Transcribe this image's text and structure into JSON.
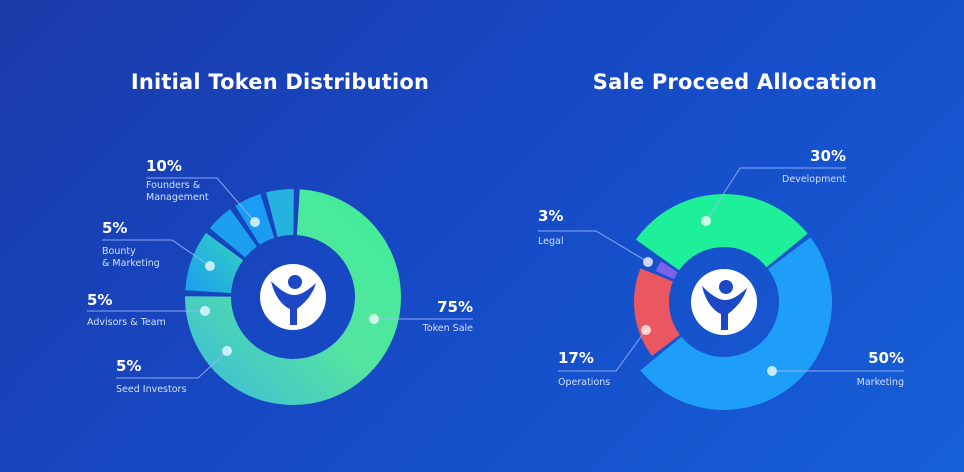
{
  "chart_data": [
    {
      "type": "pie",
      "title": "Initial Token Distribution",
      "categories": [
        "Token Sale",
        "Founders & Management",
        "Bounty & Marketing",
        "Advisors & Team",
        "Seed Investors"
      ],
      "values": [
        75,
        10,
        5,
        5,
        5
      ],
      "value_labels": [
        "75%",
        "10%",
        "5%",
        "5%",
        "5%"
      ],
      "colors": [
        "#45e6a0",
        "#22b7de",
        "#1aa0ee",
        "#1a9cf4",
        "#26b2df"
      ],
      "center_icon": "person-logo-icon"
    },
    {
      "type": "pie",
      "title": "Sale Proceed Allocation",
      "categories": [
        "Development",
        "Marketing",
        "Operations",
        "Legal"
      ],
      "values": [
        30,
        50,
        17,
        3
      ],
      "value_labels": [
        "30%",
        "50%",
        "17%",
        "3%"
      ],
      "colors": [
        "#1ef09a",
        "#1e9ef8",
        "#ea5760",
        "#7b62ec"
      ],
      "center_icon": "person-logo-icon"
    }
  ]
}
